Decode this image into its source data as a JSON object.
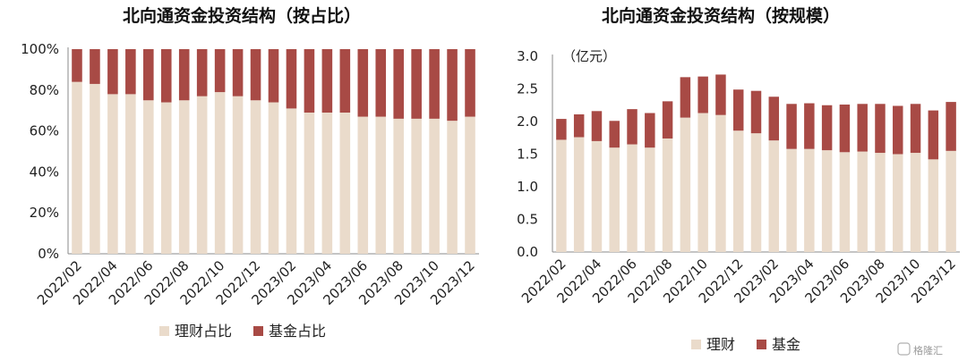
{
  "colors": {
    "wealth": "#eadbcb",
    "fund": "#a84a45",
    "axis": "#8a8a8a"
  },
  "watermark": "格隆汇",
  "chart_data": [
    {
      "type": "bar",
      "stacked": true,
      "title": "北向通资金投资结构（按占比）",
      "ylim": [
        0,
        100
      ],
      "yticks": [
        "0%",
        "20%",
        "40%",
        "60%",
        "80%",
        "100%"
      ],
      "categories": [
        "2022/02",
        "2022/03",
        "2022/04",
        "2022/05",
        "2022/06",
        "2022/07",
        "2022/08",
        "2022/09",
        "2022/10",
        "2022/11",
        "2022/12",
        "2023/01",
        "2023/02",
        "2023/03",
        "2023/04",
        "2023/05",
        "2023/06",
        "2023/07",
        "2023/08",
        "2023/09",
        "2023/10",
        "2023/11",
        "2023/12"
      ],
      "xtick_labels": [
        "2022/02",
        "2022/04",
        "2022/06",
        "2022/08",
        "2022/10",
        "2022/12",
        "2023/02",
        "2023/04",
        "2023/06",
        "2023/08",
        "2023/10",
        "2023/12"
      ],
      "series": [
        {
          "name": "理财占比",
          "values": [
            84,
            83,
            78,
            78,
            75,
            74,
            75,
            77,
            79,
            77,
            75,
            74,
            71,
            69,
            69,
            69,
            67,
            67,
            66,
            66,
            66,
            65,
            67
          ]
        },
        {
          "name": "基金占比",
          "values": [
            16,
            17,
            22,
            22,
            25,
            26,
            25,
            23,
            21,
            23,
            25,
            26,
            29,
            31,
            31,
            31,
            33,
            33,
            34,
            34,
            34,
            35,
            33
          ]
        }
      ],
      "legend_position": "bottom"
    },
    {
      "type": "bar",
      "stacked": true,
      "title": "北向通资金投资结构（按规模）",
      "unit_label": "（亿元）",
      "ylim": [
        0,
        3.0
      ],
      "yticks": [
        "0.0",
        "0.5",
        "1.0",
        "1.5",
        "2.0",
        "2.5",
        "3.0"
      ],
      "categories": [
        "2022/02",
        "2022/03",
        "2022/04",
        "2022/05",
        "2022/06",
        "2022/07",
        "2022/08",
        "2022/09",
        "2022/10",
        "2022/11",
        "2022/12",
        "2023/01",
        "2023/02",
        "2023/03",
        "2023/04",
        "2023/05",
        "2023/06",
        "2023/07",
        "2023/08",
        "2023/09",
        "2023/10",
        "2023/11",
        "2023/12"
      ],
      "xtick_labels": [
        "2022/02",
        "2022/04",
        "2022/06",
        "2022/08",
        "2022/10",
        "2022/12",
        "2023/02",
        "2023/04",
        "2023/06",
        "2023/08",
        "2023/10",
        "2023/12"
      ],
      "series": [
        {
          "name": "理财",
          "values": [
            1.72,
            1.76,
            1.7,
            1.6,
            1.65,
            1.6,
            1.74,
            2.06,
            2.13,
            2.1,
            1.86,
            1.82,
            1.71,
            1.58,
            1.58,
            1.56,
            1.53,
            1.54,
            1.52,
            1.5,
            1.52,
            1.42,
            1.55
          ]
        },
        {
          "name": "基金",
          "values": [
            0.32,
            0.35,
            0.46,
            0.41,
            0.54,
            0.53,
            0.57,
            0.62,
            0.56,
            0.62,
            0.63,
            0.65,
            0.67,
            0.69,
            0.7,
            0.69,
            0.73,
            0.73,
            0.75,
            0.74,
            0.75,
            0.75,
            0.75
          ]
        }
      ],
      "legend_position": "bottom"
    }
  ]
}
